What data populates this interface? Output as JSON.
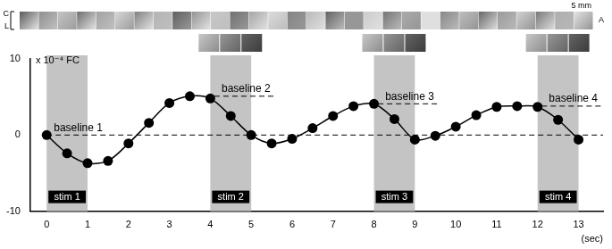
{
  "chart_data": {
    "type": "line",
    "x": [
      0,
      0.5,
      1,
      1.5,
      2,
      2.5,
      3,
      3.5,
      4,
      4.5,
      5,
      5.5,
      6,
      6.5,
      7,
      7.5,
      8,
      8.5,
      9,
      9.5,
      10,
      10.5,
      11,
      11.5,
      12,
      12.5,
      13
    ],
    "values": [
      0,
      -2.4,
      -3.7,
      -3.4,
      -1.1,
      1.6,
      4.2,
      5.1,
      4.8,
      2.5,
      0,
      -1.1,
      -0.5,
      0.9,
      2.5,
      3.8,
      4.1,
      2.1,
      -0.6,
      -0.1,
      1.1,
      2.6,
      3.7,
      3.8,
      3.7,
      2.0,
      -0.6
    ],
    "color": "#000000",
    "marker": "circle",
    "xlabel": "(sec)",
    "ylabel": "x 10⁻⁴ FC",
    "xlim": [
      -0.4,
      13.6
    ],
    "xticks": [
      0,
      1,
      2,
      3,
      4,
      5,
      6,
      7,
      8,
      9,
      10,
      11,
      12,
      13
    ],
    "ylim": [
      -10,
      10
    ],
    "yticks": [
      -10,
      0,
      10
    ],
    "grid": false,
    "stimuli": [
      {
        "label": "stim 1",
        "start": 0,
        "end": 1
      },
      {
        "label": "stim 2",
        "start": 4,
        "end": 5
      },
      {
        "label": "stim 3",
        "start": 8,
        "end": 9
      },
      {
        "label": "stim 4",
        "start": 12,
        "end": 13
      }
    ],
    "baselines": [
      {
        "label": "baseline 1",
        "value": 0,
        "x": [
          0,
          13.6
        ]
      },
      {
        "label": "baseline 2",
        "value": 5.1,
        "x": [
          4.1,
          5.6
        ]
      },
      {
        "label": "baseline 3",
        "value": 4.1,
        "x": [
          8.1,
          9.6
        ]
      },
      {
        "label": "baseline 4",
        "value": 3.8,
        "x": [
          12.1,
          13.6
        ]
      }
    ],
    "image_strip": {
      "labels": [
        "C",
        "L",
        "A"
      ],
      "scale_label": "5 mm"
    }
  }
}
